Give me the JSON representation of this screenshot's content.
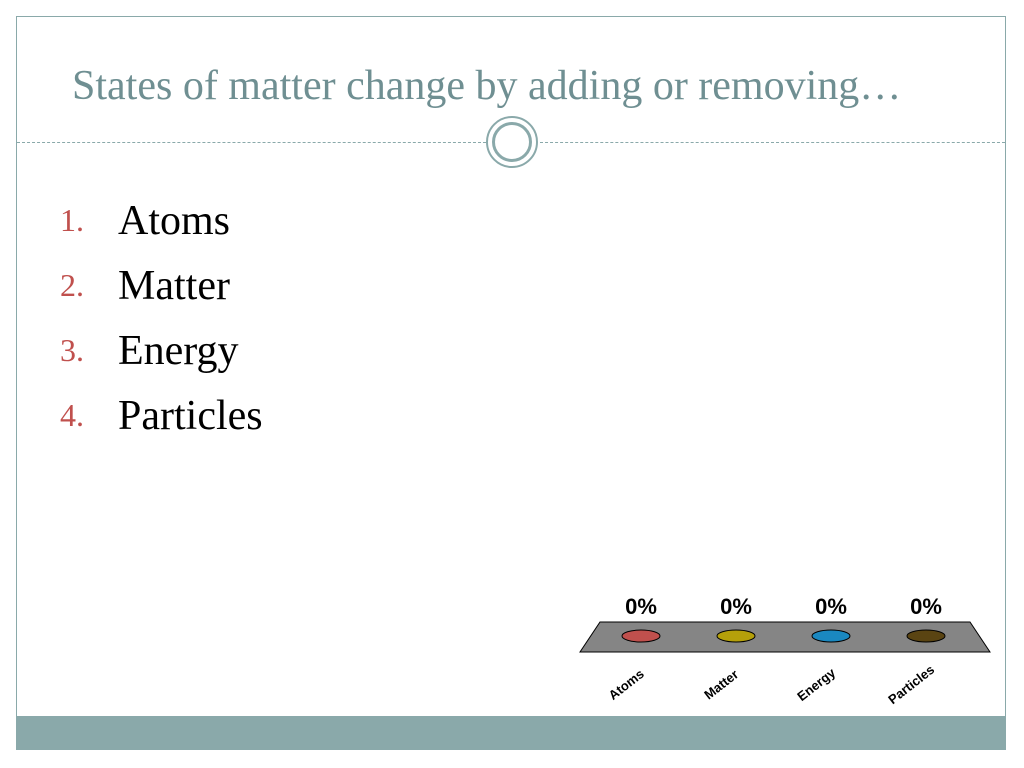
{
  "slide": {
    "title": "States of matter change by adding or removing…",
    "accent_color": "#8aa9aa",
    "title_color": "#6f8f92",
    "number_color": "#c0504d"
  },
  "options": [
    {
      "number": "1.",
      "label": "Atoms"
    },
    {
      "number": "2.",
      "label": "Matter"
    },
    {
      "number": "3.",
      "label": "Energy"
    },
    {
      "number": "4.",
      "label": "Particles"
    }
  ],
  "chart_data": {
    "type": "bar",
    "title": "",
    "xlabel": "",
    "ylabel": "",
    "categories": [
      "Atoms",
      "Matter",
      "Energy",
      "Particles"
    ],
    "values": [
      0,
      0,
      0,
      0
    ],
    "value_labels": [
      "0%",
      "0%",
      "0%",
      "0%"
    ],
    "colors": [
      "#c0504d",
      "#b5a00a",
      "#1a88c0",
      "#5a4412"
    ],
    "ylim": [
      0,
      100
    ]
  }
}
